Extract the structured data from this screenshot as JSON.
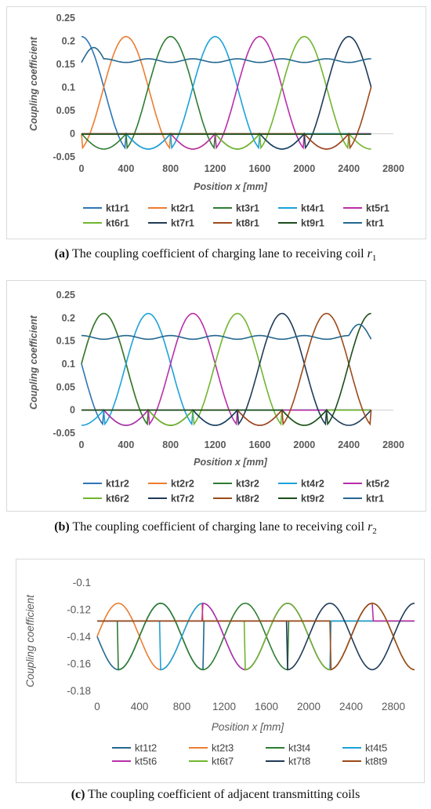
{
  "chart_data": [
    {
      "type": "line",
      "xlabel": "Position x [mm]",
      "ylabel": "Coupling coefficient",
      "xlim": [
        0,
        2800
      ],
      "ylim": [
        -0.05,
        0.25
      ],
      "xticks": [
        0,
        400,
        800,
        1200,
        1600,
        2000,
        2400,
        2800
      ],
      "yticks": [
        0.25,
        0.2,
        0.15,
        0.1,
        0.05,
        0,
        -0.05
      ],
      "legend": "bottom",
      "series": [
        {
          "name": "kt1r1",
          "color": "#2e75b6"
        },
        {
          "name": "kt2r1",
          "color": "#ed7d31"
        },
        {
          "name": "kt3r1",
          "color": "#2e7d32"
        },
        {
          "name": "kt4r1",
          "color": "#1ca2d8"
        },
        {
          "name": "kt5r1",
          "color": "#b82fa8"
        },
        {
          "name": "kt6r1",
          "color": "#70b62f"
        },
        {
          "name": "kt7r1",
          "color": "#1f3b57"
        },
        {
          "name": "kt8r1",
          "color": "#9c4a1a"
        },
        {
          "name": "kt9r1",
          "color": "#1b4d1b"
        },
        {
          "name": "ktr1",
          "color": "#24678f"
        }
      ]
    },
    {
      "type": "line",
      "xlabel": "Position x [mm]",
      "ylabel": "Coupling coefficient",
      "xlim": [
        0,
        2800
      ],
      "ylim": [
        -0.05,
        0.25
      ],
      "xticks": [
        0,
        400,
        800,
        1200,
        1600,
        2000,
        2400,
        2800
      ],
      "yticks": [
        0.25,
        0.2,
        0.15,
        0.1,
        0.05,
        0,
        -0.05
      ],
      "legend": "bottom",
      "series": [
        {
          "name": "kt1r2",
          "color": "#2e75b6"
        },
        {
          "name": "kt2r2",
          "color": "#ed7d31"
        },
        {
          "name": "kt3r2",
          "color": "#2e7d32"
        },
        {
          "name": "kt4r2",
          "color": "#1ca2d8"
        },
        {
          "name": "kt5r2",
          "color": "#b82fa8"
        },
        {
          "name": "kt6r2",
          "color": "#70b62f"
        },
        {
          "name": "kt7r2",
          "color": "#1f3b57"
        },
        {
          "name": "kt8r2",
          "color": "#9c4a1a"
        },
        {
          "name": "kt9r2",
          "color": "#1b4d1b"
        },
        {
          "name": "ktr1",
          "color": "#24678f"
        }
      ]
    },
    {
      "type": "line",
      "xlabel": "Position x [mm]",
      "ylabel": "Coupling coefficient",
      "xlim": [
        0,
        3000
      ],
      "ylim": [
        -0.18,
        -0.1
      ],
      "xticks": [
        0,
        400,
        800,
        1200,
        1600,
        2000,
        2400,
        2800
      ],
      "yticks": [
        -0.1,
        -0.12,
        -0.14,
        -0.16,
        -0.18
      ],
      "legend": "bottom",
      "series": [
        {
          "name": "kt1t2",
          "color": "#24678f"
        },
        {
          "name": "kt2t3",
          "color": "#ed7d31"
        },
        {
          "name": "kt3t4",
          "color": "#2e7d32"
        },
        {
          "name": "kt4t5",
          "color": "#1ca2d8"
        },
        {
          "name": "kt5t6",
          "color": "#b82fa8"
        },
        {
          "name": "kt6t7",
          "color": "#70b62f"
        },
        {
          "name": "kt7t8",
          "color": "#1f3b57"
        },
        {
          "name": "kt8t9",
          "color": "#9c4a1a"
        }
      ]
    }
  ],
  "captions": [
    {
      "label": "(a)",
      "text": " The coupling coefficient of charging lane to receiving coil ",
      "var": "r",
      "sub": "1"
    },
    {
      "label": "(b)",
      "text": " The coupling coefficient of charging lane to receiving coil ",
      "var": "r",
      "sub": "2"
    },
    {
      "label": "(c)",
      "text": " The coupling coefficient of adjacent transmitting coils",
      "var": "",
      "sub": ""
    }
  ]
}
